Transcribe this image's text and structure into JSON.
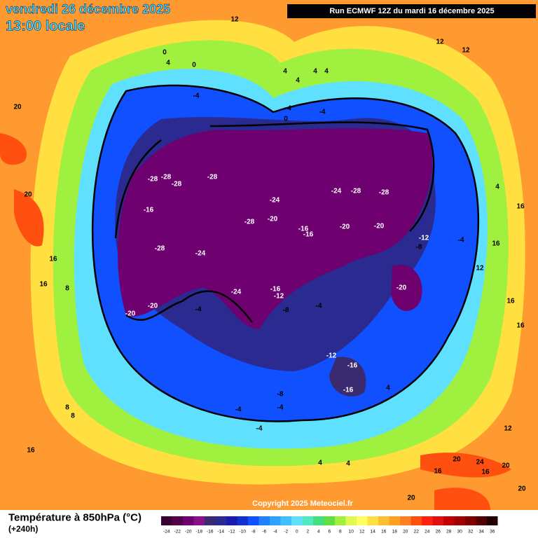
{
  "header": {
    "date": "vendredi 26 décembre 2025",
    "time": "13:00 locale",
    "run": "Run ECMWF 12Z du mardi 16 décembre 2025"
  },
  "map": {
    "contour_labels": [
      12,
      12,
      12,
      0,
      4,
      0,
      4,
      4,
      4,
      4,
      20,
      -4,
      4,
      -4,
      0,
      -28,
      -28,
      -28,
      -28,
      -24,
      -24,
      -28,
      -28,
      -16,
      -28,
      -20,
      -16,
      -16,
      -20,
      -20,
      -12,
      -8,
      -28,
      -24,
      -24,
      -16,
      -12,
      -20,
      -20,
      -20,
      -8,
      -4,
      -4,
      -12,
      -16,
      -16,
      -8,
      -4,
      -4,
      -4,
      4,
      4,
      20,
      16,
      16,
      12,
      16,
      16,
      8,
      8,
      16,
      20,
      24,
      16,
      20,
      16,
      20,
      20,
      12,
      4,
      -4,
      4,
      16,
      16,
      8
    ],
    "copyright": "Copyright 2025 Meteociel.fr"
  },
  "footer": {
    "title": "Température à 850hPa (°C)",
    "lead": "(+240h)"
  },
  "legend": {
    "ticks": [
      -24,
      -22,
      -20,
      -18,
      -16,
      -14,
      -12,
      -10,
      -8,
      -6,
      -4,
      -2,
      0,
      2,
      4,
      6,
      8,
      10,
      12,
      14,
      16,
      18,
      20,
      22,
      24,
      26,
      28,
      30,
      32,
      34,
      36
    ],
    "colors": [
      "#3a0030",
      "#52004a",
      "#6e0070",
      "#8a108a",
      "#3a2a70",
      "#2a2a90",
      "#1a1ab0",
      "#1030d0",
      "#1050ff",
      "#2080ff",
      "#30a0ff",
      "#40c0ff",
      "#60e0ff",
      "#50e8c0",
      "#40e080",
      "#60e040",
      "#a0f040",
      "#e0f850",
      "#ffff60",
      "#ffe040",
      "#ffc030",
      "#ffa020",
      "#ff8020",
      "#ff5010",
      "#ff2010",
      "#e01010",
      "#c00000",
      "#a00000",
      "#800000",
      "#500000",
      "#200000"
    ]
  }
}
